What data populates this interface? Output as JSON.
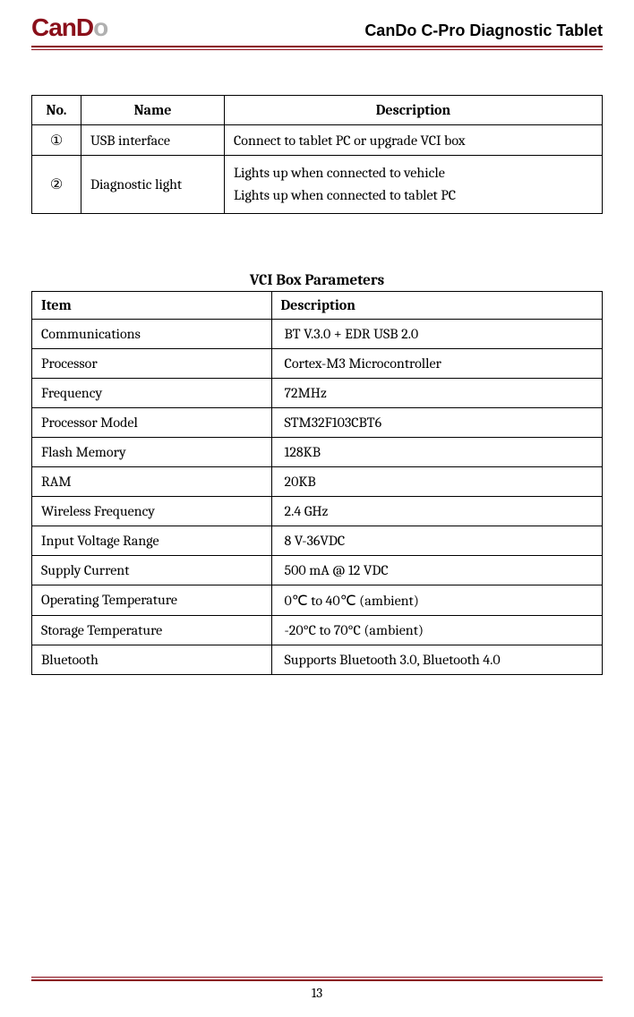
{
  "header": {
    "logo_main": "CanD",
    "logo_accent": "o",
    "title": "CanDo C-Pro Diagnostic Tablet"
  },
  "table1": {
    "headers": {
      "no": "No.",
      "name": "Name",
      "description": "Description"
    },
    "rows": [
      {
        "no": "①",
        "name": "USB interface",
        "desc": "Connect to tablet PC or upgrade VCI box"
      },
      {
        "no": "②",
        "name": "Diagnostic light",
        "desc": "Lights up when connected to vehicle\nLights up when connected to tablet PC"
      }
    ]
  },
  "section2_title": "VCI Box Parameters",
  "table2": {
    "headers": {
      "item": "Item",
      "description": "Description"
    },
    "rows": [
      {
        "item": "Communications",
        "desc": "BT V.3.0 + EDR    USB 2.0"
      },
      {
        "item": "Processor",
        "desc": "Cortex-M3    Microcontroller"
      },
      {
        "item": "Frequency",
        "desc": "72MHz"
      },
      {
        "item": "Processor Model",
        "desc": "STM32F103CBT6"
      },
      {
        "item": "Flash Memory",
        "desc": "128KB"
      },
      {
        "item": "RAM",
        "desc": "20KB"
      },
      {
        "item": "Wireless Frequency",
        "desc": "2.4 GHz"
      },
      {
        "item": "Input Voltage Range",
        "desc": "8 V-36VDC"
      },
      {
        "item": "Supply Current",
        "desc": "500 mA @ 12 VDC"
      },
      {
        "item": "Operating Temperature",
        "desc": "0℃ to 40℃ (ambient)"
      },
      {
        "item": "Storage Temperature",
        "desc": "-20°C to 70°C (ambient)"
      },
      {
        "item": "Bluetooth",
        "desc": "Supports Bluetooth 3.0, Bluetooth 4.0"
      }
    ]
  },
  "page_number": "13"
}
